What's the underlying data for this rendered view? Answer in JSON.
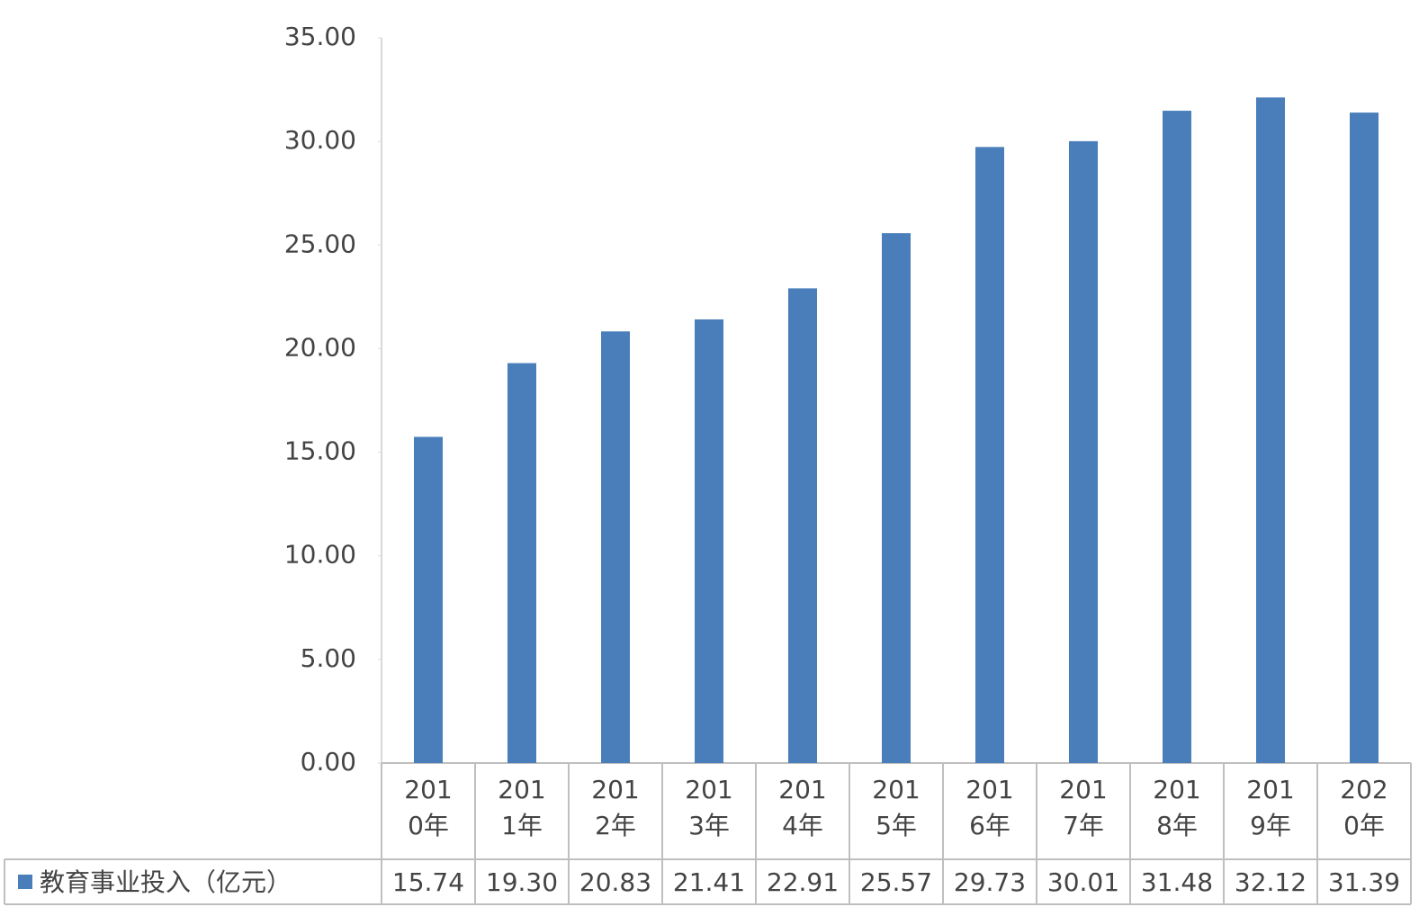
{
  "chart_data": {
    "type": "bar",
    "categories": [
      "2010年",
      "2011年",
      "2012年",
      "2013年",
      "2014年",
      "2015年",
      "2016年",
      "2017年",
      "2018年",
      "2019年",
      "2020年"
    ],
    "series": [
      {
        "name": "教育事业投入（亿元）",
        "color": "#4a7ebb",
        "values": [
          15.74,
          19.3,
          20.83,
          21.41,
          22.91,
          25.57,
          29.73,
          30.01,
          31.48,
          32.12,
          31.39
        ],
        "value_labels": [
          "15.74",
          "19.30",
          "20.83",
          "21.41",
          "22.91",
          "25.57",
          "29.73",
          "30.01",
          "31.48",
          "32.12",
          "31.39"
        ]
      }
    ],
    "ylim": [
      0,
      35
    ],
    "yticks": [
      {
        "value": 0,
        "label": "0.00"
      },
      {
        "value": 5,
        "label": "5.00"
      },
      {
        "value": 10,
        "label": "10.00"
      },
      {
        "value": 15,
        "label": "15.00"
      },
      {
        "value": 20,
        "label": "20.00"
      },
      {
        "value": 25,
        "label": "25.00"
      },
      {
        "value": 30,
        "label": "30.00"
      },
      {
        "value": 35,
        "label": "35.00"
      }
    ],
    "grid": false
  }
}
